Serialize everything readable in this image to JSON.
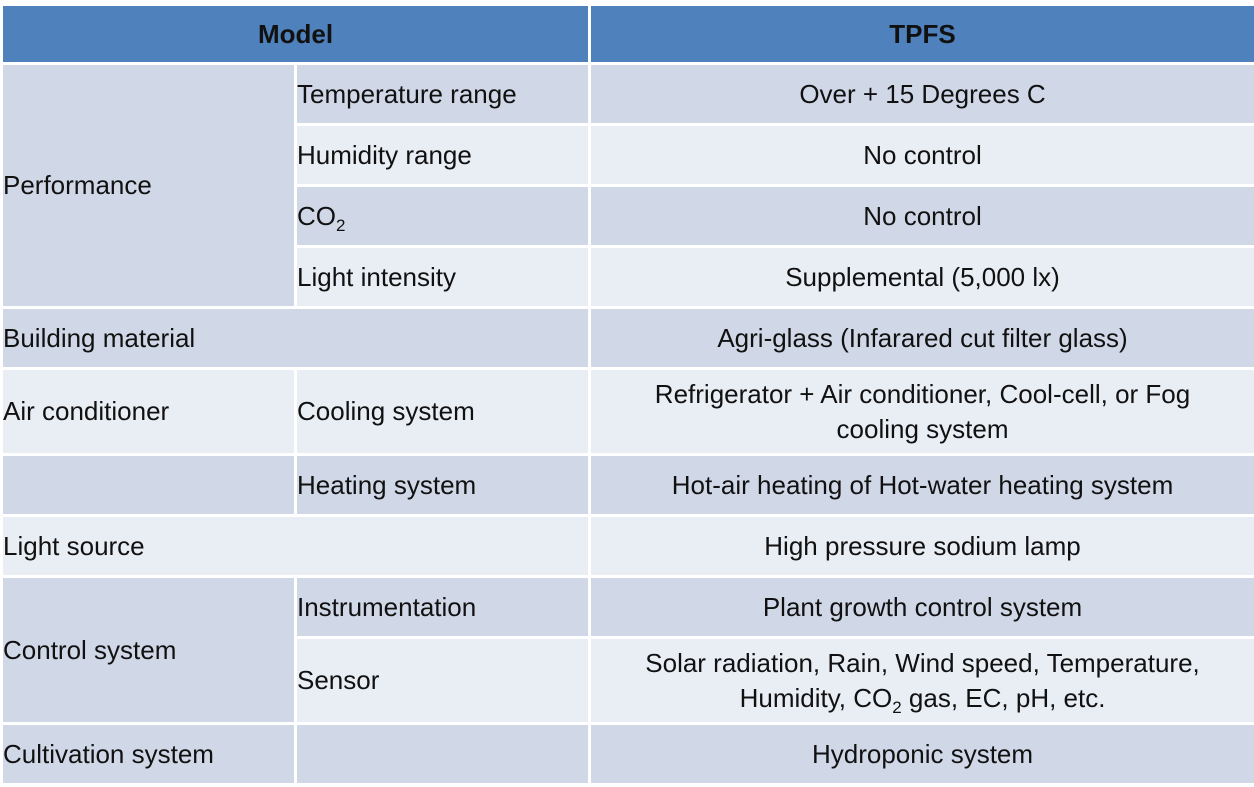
{
  "header": {
    "model": "Model",
    "tpfs": "TPFS"
  },
  "rows": {
    "performance": "Performance",
    "temperature_label": "Temperature range",
    "temperature_value": "Over + 15 Degrees C",
    "humidity_label": "Humidity range",
    "humidity_value": "No control",
    "co2_label_main": "CO",
    "co2_label_sub": "2",
    "co2_value": "No control",
    "light_intensity_label": "Light intensity",
    "light_intensity_value": "Supplemental (5,000 lx)",
    "building_material_label": "Building material",
    "building_material_value": "Agri-glass (Infarared cut filter glass)",
    "air_conditioner_label": "Air conditioner",
    "cooling_label": "Cooling system",
    "cooling_value_line1": "Refrigerator + Air conditioner, Cool-cell, or Fog",
    "cooling_value_line2": "cooling system",
    "heating_label": "Heating system",
    "heating_value": "Hot-air heating of Hot-water heating system",
    "light_source_label": "Light source",
    "light_source_value": "High pressure sodium lamp",
    "control_system_label": "Control system",
    "instrumentation_label": "Instrumentation",
    "instrumentation_value": "Plant growth control system",
    "sensor_label": "Sensor",
    "sensor_value_line1": "Solar radiation, Rain, Wind speed, Temperature,",
    "sensor_value_line2_a": "Humidity, CO",
    "sensor_value_line2_sub": "2",
    "sensor_value_line2_b": " gas, EC, pH, etc.",
    "cultivation_label": "Cultivation system",
    "cultivation_value": "Hydroponic system"
  }
}
